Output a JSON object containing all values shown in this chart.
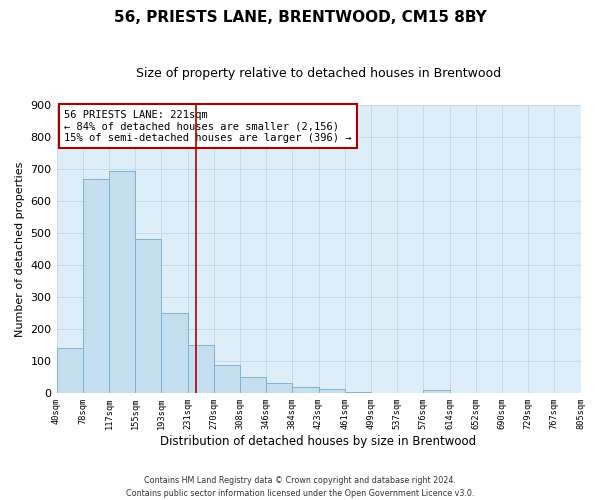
{
  "title": "56, PRIESTS LANE, BRENTWOOD, CM15 8BY",
  "subtitle": "Size of property relative to detached houses in Brentwood",
  "xlabel": "Distribution of detached houses by size in Brentwood",
  "ylabel": "Number of detached properties",
  "bar_values": [
    140,
    670,
    693,
    480,
    250,
    148,
    85,
    50,
    30,
    18,
    10,
    3,
    0,
    0,
    8,
    0,
    0,
    0,
    0,
    0
  ],
  "bar_labels": [
    "40sqm",
    "78sqm",
    "117sqm",
    "155sqm",
    "193sqm",
    "231sqm",
    "270sqm",
    "308sqm",
    "346sqm",
    "384sqm",
    "423sqm",
    "461sqm",
    "499sqm",
    "537sqm",
    "576sqm",
    "614sqm",
    "652sqm",
    "690sqm",
    "729sqm",
    "767sqm",
    "805sqm"
  ],
  "bar_color": "#c6dff0",
  "bar_edge_color": "#7fb3d3",
  "vline_color": "#aa0000",
  "vline_x_index": 4.82,
  "ylim": [
    0,
    900
  ],
  "yticks": [
    0,
    100,
    200,
    300,
    400,
    500,
    600,
    700,
    800,
    900
  ],
  "annotation_title": "56 PRIESTS LANE: 221sqm",
  "annotation_line1": "← 84% of detached houses are smaller (2,156)",
  "annotation_line2": "15% of semi-detached houses are larger (396) →",
  "annotation_box_color": "#ffffff",
  "annotation_box_edge": "#aa0000",
  "footer_line1": "Contains HM Land Registry data © Crown copyright and database right 2024.",
  "footer_line2": "Contains public sector information licensed under the Open Government Licence v3.0.",
  "grid_color": "#c8d8e8",
  "background_color": "#ddeef8"
}
